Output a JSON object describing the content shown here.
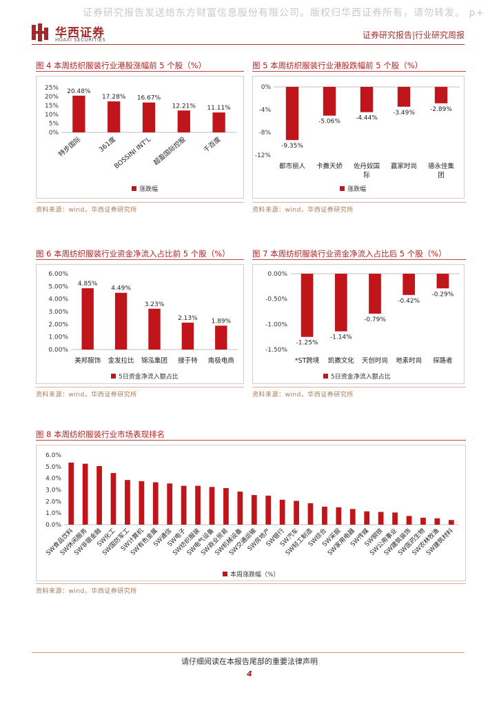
{
  "watermark": "证券研究报告发送给东方财富信息股份有限公司。版权归华西证券所有，请勿转发。 p+",
  "header": {
    "brand_cn": "华西证券",
    "brand_en": "HUAXI SECURITIES",
    "right_text": "证券研究报告|行业研究周报",
    "accent": "#b01e1e"
  },
  "source_text": "资料来源：wind，华西证券研究所",
  "fig4": {
    "title": "图 4 本周纺织服装行业港股涨幅前 5 个股（%）",
    "legend": "涨跌幅",
    "chart_data": {
      "type": "bar",
      "categories": [
        "特步国际",
        "361度",
        "BOSSINI INT'L",
        "超盈国际控股",
        "千百度"
      ],
      "values": [
        20.48,
        17.28,
        16.67,
        12.21,
        11.11
      ],
      "value_labels": [
        "20.48%",
        "17.28%",
        "16.67%",
        "12.21%",
        "11.11%"
      ],
      "ylim": [
        0,
        25
      ],
      "yticks": [
        "25%",
        "20%",
        "15%",
        "10%",
        "5%",
        "0%"
      ],
      "color": "#c0161b"
    }
  },
  "fig5": {
    "title": "图 5 本周纺织服装行业港股跌幅前 5 个股（%）",
    "legend": "涨跌幅",
    "chart_data": {
      "type": "bar",
      "categories": [
        "都市丽人",
        "卡撒天娇",
        "佐丹奴国际",
        "赢家时尚",
        "德永佳集团"
      ],
      "category_lines": [
        [
          "都市丽人"
        ],
        [
          "卡撒天娇"
        ],
        [
          "佐丹奴国",
          "际"
        ],
        [
          "赢家时尚"
        ],
        [
          "德永佳集",
          "团"
        ]
      ],
      "values": [
        -9.35,
        -5.06,
        -4.44,
        -3.49,
        -2.89
      ],
      "value_labels": [
        "-9.35%",
        "-5.06%",
        "-4.44%",
        "-3.49%",
        "-2.89%"
      ],
      "ylim": [
        -12,
        0
      ],
      "yticks": [
        "0%",
        "-4%",
        "-8%",
        "-12%"
      ],
      "color": "#c0161b"
    }
  },
  "fig6": {
    "title": "图 6 本周纺织服装行业资金净流入占比前 5 个股（%）",
    "legend": "5日资金净流入额占比",
    "chart_data": {
      "type": "bar",
      "categories": [
        "美邦服饰",
        "金发拉比",
        "锦泓集团",
        "搜于特",
        "南极电商"
      ],
      "values": [
        4.85,
        4.49,
        3.23,
        2.13,
        1.89
      ],
      "value_labels": [
        "4.85%",
        "4.49%",
        "3.23%",
        "2.13%",
        "1.89%"
      ],
      "ylim": [
        0,
        6
      ],
      "yticks": [
        "6.00%",
        "5.00%",
        "4.00%",
        "3.00%",
        "2.00%",
        "1.00%",
        "0.00%"
      ],
      "color": "#c0161b"
    }
  },
  "fig7": {
    "title": "图 7 本周纺织服装行业资金净流入占比后 5 个股（%）",
    "legend": "5日资金净流入额占比",
    "chart_data": {
      "type": "bar",
      "categories": [
        "*ST跨境",
        "凯撒文化",
        "天创时尚",
        "地素时尚",
        "探路者"
      ],
      "values": [
        -1.25,
        -1.14,
        -0.79,
        -0.42,
        -0.29
      ],
      "value_labels": [
        "-1.25%",
        "-1.14%",
        "-0.79%",
        "-0.42%",
        "-0.29%"
      ],
      "ylim": [
        -1.5,
        0
      ],
      "yticks": [
        "0.00%",
        "-0.50%",
        "-1.00%",
        "-1.50%"
      ],
      "color": "#c0161b"
    }
  },
  "fig8": {
    "title": "图 8 本周纺织服装行业市场表现排名",
    "legend": "本周涨跌幅（%）",
    "chart_data": {
      "type": "bar",
      "categories": [
        "SW食品饮料",
        "SW休闲服务",
        "SW非银金融",
        "SW化工",
        "SW国防军工",
        "SW计算机",
        "SW有色金属",
        "SW通信",
        "SW电子",
        "SW纺织服装",
        "SW电气设备",
        "SW商业贸易",
        "SW机械设备",
        "SW交通运输",
        "SW房地产",
        "SW银行",
        "SW汽车",
        "SW轻工制造",
        "SW综合",
        "SW采掘",
        "SW家用电器",
        "SW传媒",
        "SW钢铁",
        "SW公用事业",
        "SW建筑装饰",
        "SW医药生物",
        "SW农林牧渔",
        "SW建筑材料"
      ],
      "values": [
        5.35,
        5.25,
        5.05,
        4.45,
        3.85,
        3.75,
        3.65,
        3.55,
        3.35,
        3.35,
        3.25,
        3.15,
        2.85,
        2.55,
        2.5,
        2.15,
        2.05,
        1.85,
        1.55,
        1.5,
        1.35,
        1.15,
        1.1,
        1.05,
        0.75,
        0.6,
        0.55,
        0.4
      ],
      "ylim": [
        0,
        6
      ],
      "yticks": [
        "6.0%",
        "5.0%",
        "4.0%",
        "3.0%",
        "2.0%",
        "1.0%",
        "0.0%"
      ],
      "color": "#c0161b"
    }
  },
  "footer": {
    "disclaimer": "请仔细阅读在本报告尾部的重要法律声明",
    "page": "4"
  }
}
